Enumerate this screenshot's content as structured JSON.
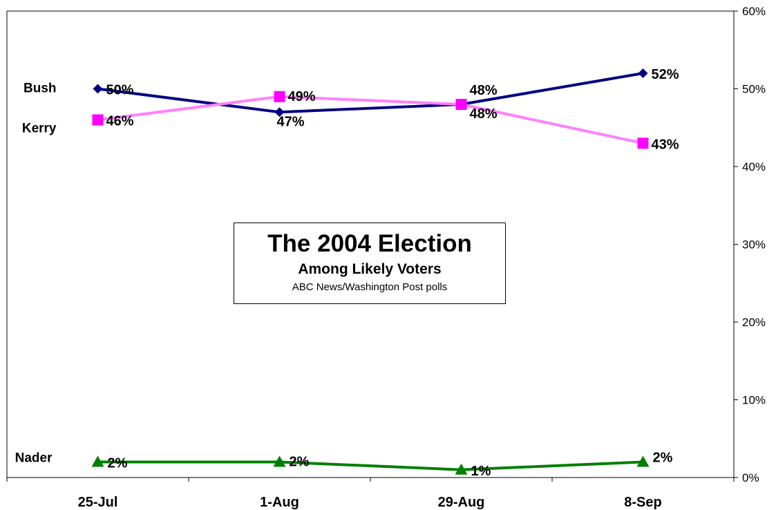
{
  "chart_data": {
    "type": "line",
    "title": "The 2004 Election",
    "subtitle": "Among Likely Voters",
    "source": "ABC News/Washington Post polls",
    "categories": [
      "25-Jul",
      "1-Aug",
      "29-Aug",
      "8-Sep"
    ],
    "ylim": [
      0,
      60
    ],
    "yticks": [
      "0%",
      "10%",
      "20%",
      "30%",
      "40%",
      "50%",
      "60%"
    ],
    "y_axis_side": "right",
    "grid": false,
    "legend": "series names labeled at left of lines",
    "series": [
      {
        "name": "Bush",
        "values": [
          50,
          47,
          48,
          52
        ],
        "labels": [
          "50%",
          "47%",
          "48%",
          "52%"
        ],
        "color": "#000080",
        "marker": "diamond"
      },
      {
        "name": "Kerry",
        "values": [
          46,
          49,
          48,
          43
        ],
        "labels": [
          "46%",
          "49%",
          "48%",
          "43%"
        ],
        "color": "#ff80ff",
        "marker_color": "#ff00ff",
        "marker": "square"
      },
      {
        "name": "Nader",
        "values": [
          2,
          2,
          1,
          2
        ],
        "labels": [
          "2%",
          "2%",
          "1%",
          "2%"
        ],
        "color": "#007f00",
        "marker": "triangle"
      }
    ]
  }
}
